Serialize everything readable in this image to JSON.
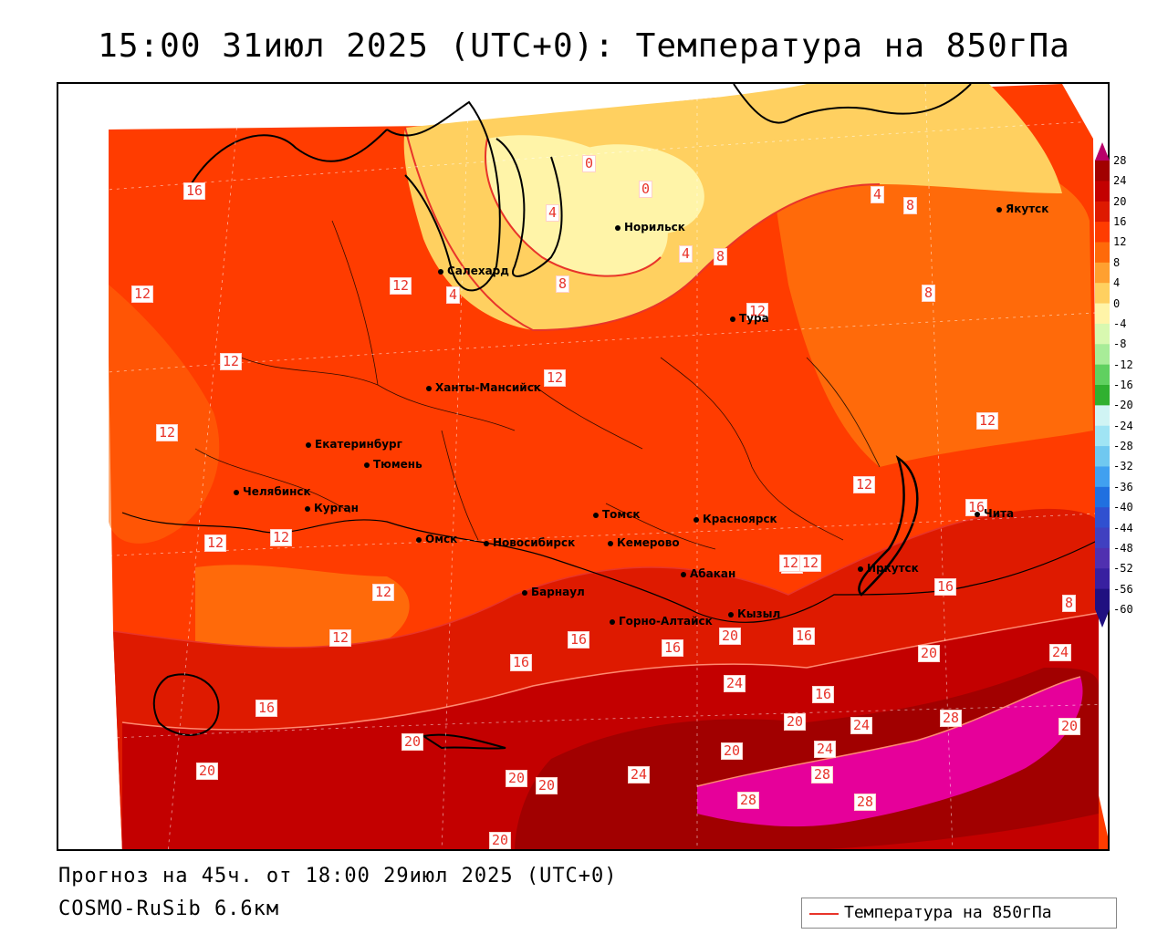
{
  "header": {
    "title": "15:00 31июл 2025 (UTC+0): Температура на 850гПа"
  },
  "footer": {
    "forecast_line": "Прогноз на 45ч. от 18:00 29июл 2025 (UTC+0)",
    "model_line": "COSMO-RuSib 6.6км"
  },
  "legend": {
    "label": "Температура на 850гПа",
    "line_color": "#e8342a"
  },
  "colorbar": {
    "ticks": [
      "28",
      "24",
      "20",
      "16",
      "12",
      "8",
      "4",
      "0",
      "-4",
      "-8",
      "-12",
      "-16",
      "-20",
      "-24",
      "-28",
      "-32",
      "-36",
      "-40",
      "-44",
      "-48",
      "-52",
      "-56",
      "-60"
    ],
    "colors": [
      "#b8006a",
      "#a10000",
      "#c30000",
      "#de1a00",
      "#ff3c00",
      "#ff6a0a",
      "#ffa030",
      "#ffd060",
      "#fff4a8",
      "#d8f8b0",
      "#a8ec98",
      "#60d060",
      "#30b030",
      "#d0f4f4",
      "#a0e4f4",
      "#70c8f0",
      "#40a0f0",
      "#2070e0",
      "#3050d0",
      "#4040c0",
      "#5030b0",
      "#3820a0",
      "#201080"
    ]
  },
  "cities": [
    {
      "name": "Салехард"
    },
    {
      "name": "Норильск"
    },
    {
      "name": "Якутск"
    },
    {
      "name": "Тура"
    },
    {
      "name": "Ханты-Мансийск"
    },
    {
      "name": "Екатеринбург"
    },
    {
      "name": "Тюмень"
    },
    {
      "name": "Челябинск"
    },
    {
      "name": "Курган"
    },
    {
      "name": "Омск"
    },
    {
      "name": "Томск"
    },
    {
      "name": "Новосибирск"
    },
    {
      "name": "Кемерово"
    },
    {
      "name": "Красноярск"
    },
    {
      "name": "Абакан"
    },
    {
      "name": "Барнаул"
    },
    {
      "name": "Иркутск"
    },
    {
      "name": "Горно-Алтайск"
    },
    {
      "name": "Кызыл"
    },
    {
      "name": "Чита"
    }
  ],
  "contour_labels": [
    "16",
    "12",
    "12",
    "12",
    "12",
    "12",
    "12",
    "12",
    "12",
    "12",
    "12",
    "12",
    "12",
    "12",
    "16",
    "16",
    "16",
    "16",
    "16",
    "16",
    "16",
    "16",
    "20",
    "20",
    "20",
    "20",
    "20",
    "20",
    "20",
    "20",
    "20",
    "20",
    "24",
    "24",
    "24",
    "24",
    "24",
    "28",
    "28",
    "28",
    "28",
    "0",
    "0",
    "4",
    "4",
    "4",
    "4",
    "8",
    "8",
    "8",
    "8",
    "8",
    "12",
    "12"
  ]
}
